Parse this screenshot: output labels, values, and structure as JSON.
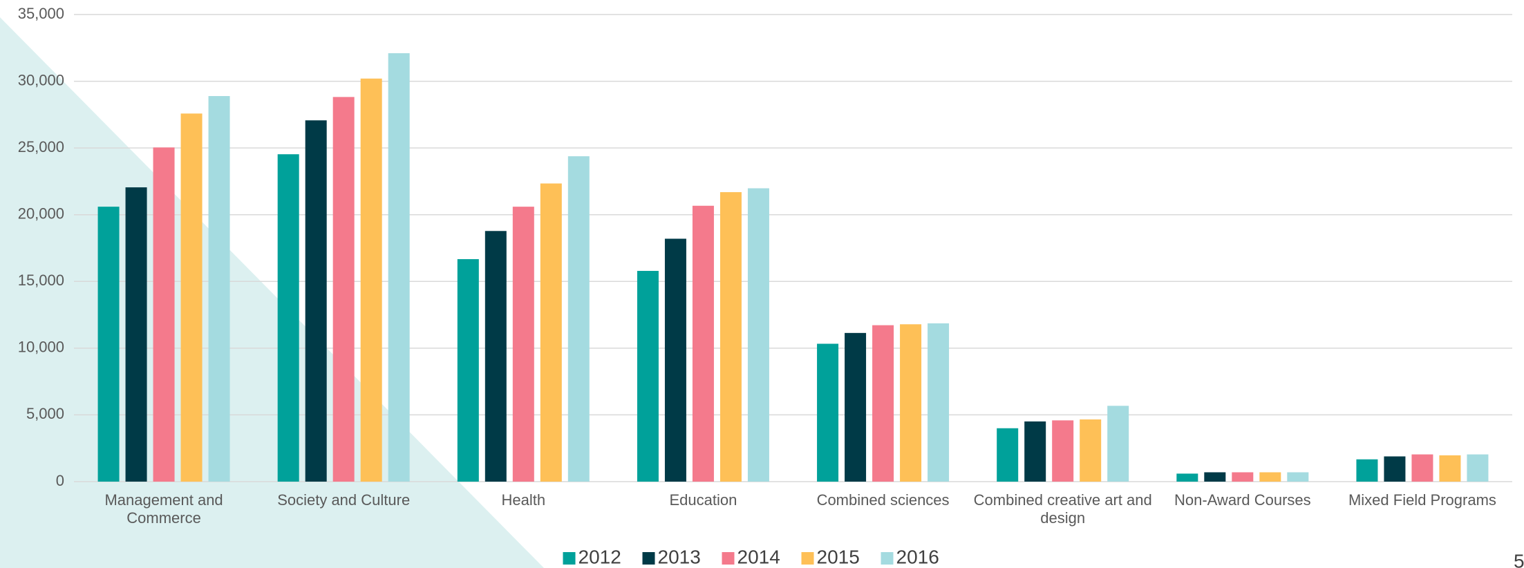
{
  "chart_data": {
    "type": "bar",
    "categories": [
      "Management and Commerce",
      "Society and Culture",
      "Health",
      "Education",
      "Combined sciences",
      "Combined creative art and design",
      "Non-Award Courses",
      "Mixed Field Programs"
    ],
    "series": [
      {
        "name": "2012",
        "color": "#00a19a",
        "values": [
          20600,
          24530,
          16670,
          15790,
          10330,
          4000,
          600,
          1670
        ]
      },
      {
        "name": "2013",
        "color": "#003a47",
        "values": [
          22050,
          27070,
          18780,
          18200,
          11140,
          4510,
          700,
          1890
        ]
      },
      {
        "name": "2014",
        "color": "#f47a8c",
        "values": [
          25040,
          28820,
          20600,
          20670,
          11720,
          4590,
          700,
          2040
        ]
      },
      {
        "name": "2015",
        "color": "#fec057",
        "values": [
          27580,
          30200,
          22340,
          21690,
          11790,
          4660,
          700,
          1970
        ]
      },
      {
        "name": "2016",
        "color": "#a4dbe0",
        "values": [
          28890,
          32100,
          24380,
          21980,
          11860,
          5680,
          700,
          2040
        ]
      }
    ],
    "ylim": [
      0,
      35000
    ],
    "yticks": [
      0,
      {
        "value": 5000,
        "label": "5,000"
      },
      {
        "value": 10000,
        "label": "10,000"
      },
      {
        "value": 15000,
        "label": "15,000"
      },
      {
        "value": 20000,
        "label": "20,000"
      },
      {
        "value": 25000,
        "label": "25,000"
      },
      {
        "value": 30000,
        "label": "30,000"
      },
      {
        "value": 35000,
        "label": "35,000"
      }
    ],
    "grid": true,
    "legend": "bottom"
  },
  "page_number": "5"
}
